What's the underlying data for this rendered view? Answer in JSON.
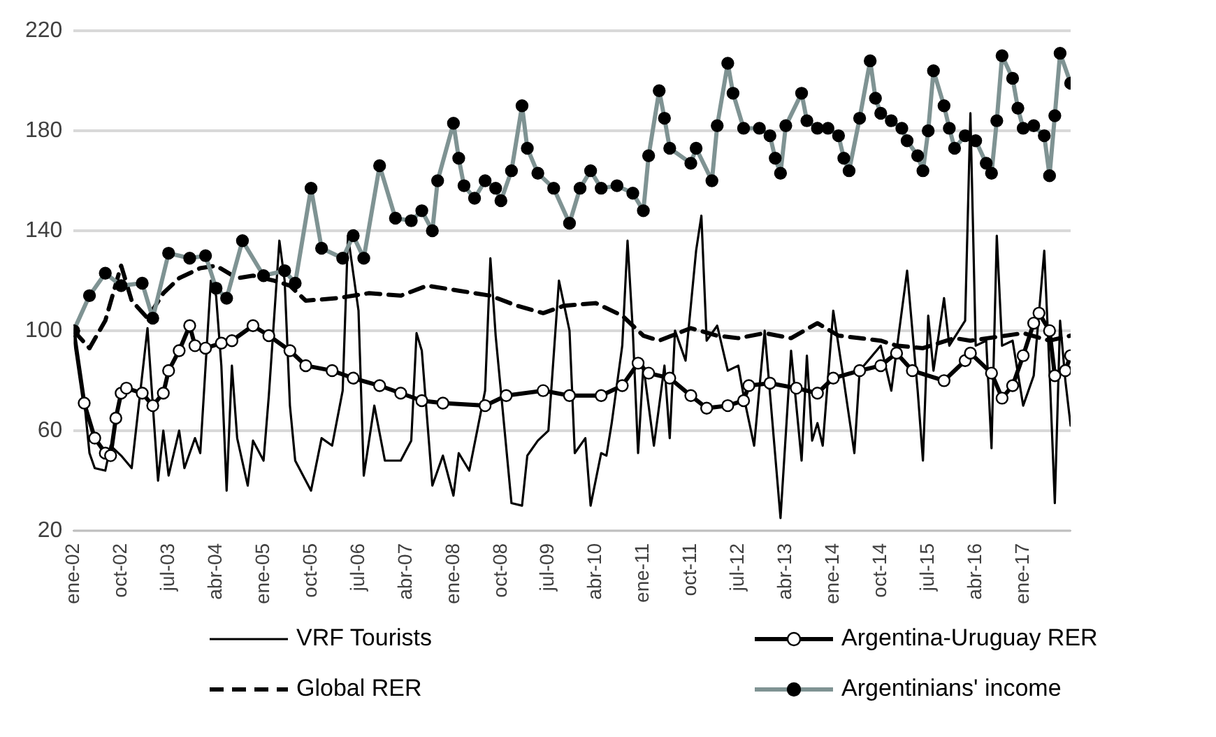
{
  "chart_data": {
    "type": "line",
    "ylim": [
      20,
      220
    ],
    "yticks": [
      20,
      60,
      100,
      140,
      180,
      220
    ],
    "xlim": [
      "2002-01",
      "2017-10"
    ],
    "xticks": [
      {
        "value": "2002-01",
        "label": "ene-02"
      },
      {
        "value": "2002-10",
        "label": "oct-02"
      },
      {
        "value": "2003-07",
        "label": "jul-03"
      },
      {
        "value": "2004-04",
        "label": "abr-04"
      },
      {
        "value": "2005-01",
        "label": "ene-05"
      },
      {
        "value": "2005-10",
        "label": "oct-05"
      },
      {
        "value": "2006-07",
        "label": "jul-06"
      },
      {
        "value": "2007-04",
        "label": "abr-07"
      },
      {
        "value": "2008-01",
        "label": "ene-08"
      },
      {
        "value": "2008-10",
        "label": "oct-08"
      },
      {
        "value": "2009-07",
        "label": "jul-09"
      },
      {
        "value": "2010-04",
        "label": "abr-10"
      },
      {
        "value": "2011-01",
        "label": "ene-11"
      },
      {
        "value": "2011-10",
        "label": "oct-11"
      },
      {
        "value": "2012-07",
        "label": "jul-12"
      },
      {
        "value": "2013-04",
        "label": "abr-13"
      },
      {
        "value": "2014-01",
        "label": "ene-14"
      },
      {
        "value": "2014-10",
        "label": "oct-14"
      },
      {
        "value": "2015-07",
        "label": "jul-15"
      },
      {
        "value": "2016-04",
        "label": "abr-16"
      },
      {
        "value": "2017-01",
        "label": "ene-17"
      }
    ],
    "grid": "y",
    "legend": "bottom",
    "series": [
      {
        "name": "VRF Tourists",
        "color": "#000000",
        "line_style": "solid",
        "x": [
          "2002-01",
          "2002-03",
          "2002-04",
          "2002-05",
          "2002-07",
          "2002-08",
          "2002-10",
          "2002-12",
          "2003-03",
          "2003-05",
          "2003-06",
          "2003-07",
          "2003-09",
          "2003-10",
          "2003-12",
          "2004-01",
          "2004-03",
          "2004-04",
          "2004-05",
          "2004-06",
          "2004-07",
          "2004-08",
          "2004-10",
          "2004-11",
          "2005-01",
          "2005-02",
          "2005-04",
          "2005-05",
          "2005-06",
          "2005-07",
          "2005-10",
          "2005-12",
          "2006-02",
          "2006-04",
          "2006-05",
          "2006-07",
          "2006-08",
          "2006-10",
          "2006-12",
          "2007-03",
          "2007-05",
          "2007-06",
          "2007-07",
          "2007-09",
          "2007-11",
          "2008-01",
          "2008-02",
          "2008-04",
          "2008-07",
          "2008-08",
          "2008-09",
          "2008-12",
          "2009-02",
          "2009-03",
          "2009-05",
          "2009-07",
          "2009-09",
          "2009-11",
          "2009-12",
          "2010-02",
          "2010-03",
          "2010-05",
          "2010-06",
          "2010-07",
          "2010-09",
          "2010-10",
          "2010-11",
          "2010-12",
          "2011-01",
          "2011-03",
          "2011-05",
          "2011-06",
          "2011-07",
          "2011-09",
          "2011-11",
          "2011-12",
          "2012-01",
          "2012-03",
          "2012-05",
          "2012-07",
          "2012-08",
          "2012-10",
          "2012-12",
          "2013-03",
          "2013-05",
          "2013-07",
          "2013-08",
          "2013-09",
          "2013-10",
          "2013-11",
          "2014-01",
          "2014-03",
          "2014-05",
          "2014-06",
          "2014-10",
          "2014-12",
          "2015-03",
          "2015-05",
          "2015-06",
          "2015-07",
          "2015-08",
          "2015-10",
          "2015-11",
          "2016-02",
          "2016-03",
          "2016-04",
          "2016-06",
          "2016-07",
          "2016-08",
          "2016-09",
          "2016-11",
          "2017-01",
          "2017-03",
          "2017-05",
          "2017-06",
          "2017-07",
          "2017-08",
          "2017-09",
          "2017-10"
        ],
        "values": [
          101,
          72,
          51,
          45,
          44,
          54,
          50,
          45,
          101,
          40,
          60,
          42,
          60,
          45,
          57,
          51,
          120,
          114,
          86,
          36,
          86,
          57,
          38,
          56,
          48,
          74,
          136,
          120,
          70,
          48,
          36,
          57,
          54,
          76,
          138,
          108,
          42,
          70,
          48,
          48,
          56,
          99,
          92,
          38,
          50,
          34,
          51,
          44,
          76,
          129,
          98,
          31,
          30,
          50,
          56,
          60,
          120,
          100,
          51,
          57,
          30,
          51,
          50,
          63,
          94,
          136,
          100,
          51,
          86,
          54,
          86,
          57,
          100,
          88,
          132,
          146,
          96,
          102,
          84,
          86,
          74,
          54,
          100,
          25,
          92,
          48,
          90,
          56,
          63,
          54,
          108,
          80,
          51,
          84,
          94,
          76,
          124,
          76,
          48,
          106,
          84,
          113,
          94,
          104,
          187,
          94,
          96,
          53,
          138,
          94,
          96,
          70,
          82,
          132,
          84,
          31,
          104,
          80,
          62
        ]
      },
      {
        "name": "Argentina-Uruguay RER",
        "color": "#000000",
        "line_style": "solid",
        "marker": "circle",
        "x": [
          "2002-01",
          "2002-03",
          "2002-05",
          "2002-07",
          "2002-08",
          "2002-09",
          "2002-10",
          "2002-11",
          "2003-02",
          "2003-04",
          "2003-06",
          "2003-07",
          "2003-09",
          "2003-11",
          "2003-12",
          "2004-02",
          "2004-05",
          "2004-07",
          "2004-11",
          "2005-02",
          "2005-06",
          "2005-09",
          "2006-02",
          "2006-06",
          "2006-11",
          "2007-03",
          "2007-07",
          "2007-11",
          "2008-07",
          "2008-11",
          "2009-06",
          "2009-11",
          "2010-05",
          "2010-09",
          "2010-12",
          "2011-02",
          "2011-06",
          "2011-10",
          "2012-01",
          "2012-05",
          "2012-08",
          "2012-09",
          "2013-01",
          "2013-06",
          "2013-10",
          "2014-01",
          "2014-06",
          "2014-10",
          "2015-01",
          "2015-04",
          "2015-10",
          "2016-02",
          "2016-03",
          "2016-07",
          "2016-09",
          "2016-11",
          "2017-01",
          "2017-03",
          "2017-04",
          "2017-06",
          "2017-07",
          "2017-09",
          "2017-10"
        ],
        "values": [
          100,
          71,
          57,
          51,
          50,
          65,
          75,
          77,
          75,
          70,
          75,
          84,
          92,
          102,
          94,
          93,
          95,
          96,
          102,
          98,
          92,
          86,
          84,
          81,
          78,
          75,
          72,
          71,
          70,
          74,
          76,
          74,
          74,
          78,
          87,
          83,
          81,
          74,
          69,
          70,
          72,
          78,
          79,
          77,
          75,
          81,
          84,
          86,
          91,
          84,
          80,
          88,
          91,
          83,
          73,
          78,
          90,
          103,
          107,
          100,
          82,
          84,
          90
        ]
      },
      {
        "name": "Global RER",
        "color": "#000000",
        "line_style": "dashed",
        "x": [
          "2002-01",
          "2002-04",
          "2002-07",
          "2002-10",
          "2002-12",
          "2003-03",
          "2003-06",
          "2003-09",
          "2004-01",
          "2004-04",
          "2004-08",
          "2004-11",
          "2005-03",
          "2005-06",
          "2005-09",
          "2006-03",
          "2006-09",
          "2007-03",
          "2007-08",
          "2008-02",
          "2008-08",
          "2009-01",
          "2009-06",
          "2009-10",
          "2010-04",
          "2010-09",
          "2011-01",
          "2011-04",
          "2011-10",
          "2012-03",
          "2012-07",
          "2012-12",
          "2013-05",
          "2013-10",
          "2014-02",
          "2014-10",
          "2015-01",
          "2015-06",
          "2015-12",
          "2016-03",
          "2017-01",
          "2017-06",
          "2017-10"
        ],
        "values": [
          100,
          93,
          104,
          126,
          112,
          105,
          115,
          121,
          125,
          126,
          121,
          122,
          120,
          118,
          112,
          113,
          115,
          114,
          118,
          116,
          114,
          110,
          107,
          110,
          111,
          106,
          98,
          96,
          101,
          98,
          97,
          99,
          97,
          103,
          98,
          96,
          94,
          93,
          97,
          96,
          99,
          96,
          98
        ]
      },
      {
        "name": "Argentinians' income",
        "color": "#7f9393",
        "line_style": "solid",
        "marker": "circle",
        "x": [
          "2002-01",
          "2002-04",
          "2002-07",
          "2002-10",
          "2003-02",
          "2003-04",
          "2003-07",
          "2003-11",
          "2004-02",
          "2004-04",
          "2004-06",
          "2004-09",
          "2005-01",
          "2005-05",
          "2005-07",
          "2005-10",
          "2005-12",
          "2006-04",
          "2006-06",
          "2006-08",
          "2006-11",
          "2007-02",
          "2007-05",
          "2007-07",
          "2007-09",
          "2007-10",
          "2008-01",
          "2008-02",
          "2008-03",
          "2008-05",
          "2008-07",
          "2008-09",
          "2008-10",
          "2008-12",
          "2009-02",
          "2009-03",
          "2009-05",
          "2009-08",
          "2009-11",
          "2010-01",
          "2010-03",
          "2010-05",
          "2010-08",
          "2010-11",
          "2011-01",
          "2011-02",
          "2011-04",
          "2011-05",
          "2011-06",
          "2011-10",
          "2011-11",
          "2012-02",
          "2012-03",
          "2012-05",
          "2012-06",
          "2012-08",
          "2012-11",
          "2013-01",
          "2013-02",
          "2013-03",
          "2013-04",
          "2013-07",
          "2013-08",
          "2013-10",
          "2013-12",
          "2014-02",
          "2014-03",
          "2014-04",
          "2014-06",
          "2014-08",
          "2014-09",
          "2014-10",
          "2014-12",
          "2015-02",
          "2015-03",
          "2015-05",
          "2015-06",
          "2015-07",
          "2015-08",
          "2015-10",
          "2015-11",
          "2015-12",
          "2016-02",
          "2016-04",
          "2016-06",
          "2016-07",
          "2016-08",
          "2016-09",
          "2016-11",
          "2016-12",
          "2017-01",
          "2017-03",
          "2017-05",
          "2017-06",
          "2017-07",
          "2017-08",
          "2017-10"
        ],
        "values": [
          100,
          114,
          123,
          118,
          119,
          105,
          131,
          129,
          130,
          117,
          113,
          136,
          122,
          124,
          119,
          157,
          133,
          129,
          138,
          129,
          166,
          145,
          144,
          148,
          140,
          160,
          183,
          169,
          158,
          153,
          160,
          157,
          152,
          164,
          190,
          173,
          163,
          157,
          143,
          157,
          164,
          157,
          158,
          155,
          148,
          170,
          196,
          185,
          173,
          167,
          173,
          160,
          182,
          207,
          195,
          181,
          181,
          178,
          169,
          163,
          182,
          195,
          184,
          181,
          181,
          178,
          169,
          164,
          185,
          208,
          193,
          187,
          184,
          181,
          176,
          170,
          164,
          180,
          204,
          190,
          181,
          173,
          178,
          176,
          167,
          163,
          184,
          210,
          201,
          189,
          181,
          182,
          178,
          162,
          186,
          211,
          199
        ]
      }
    ]
  }
}
